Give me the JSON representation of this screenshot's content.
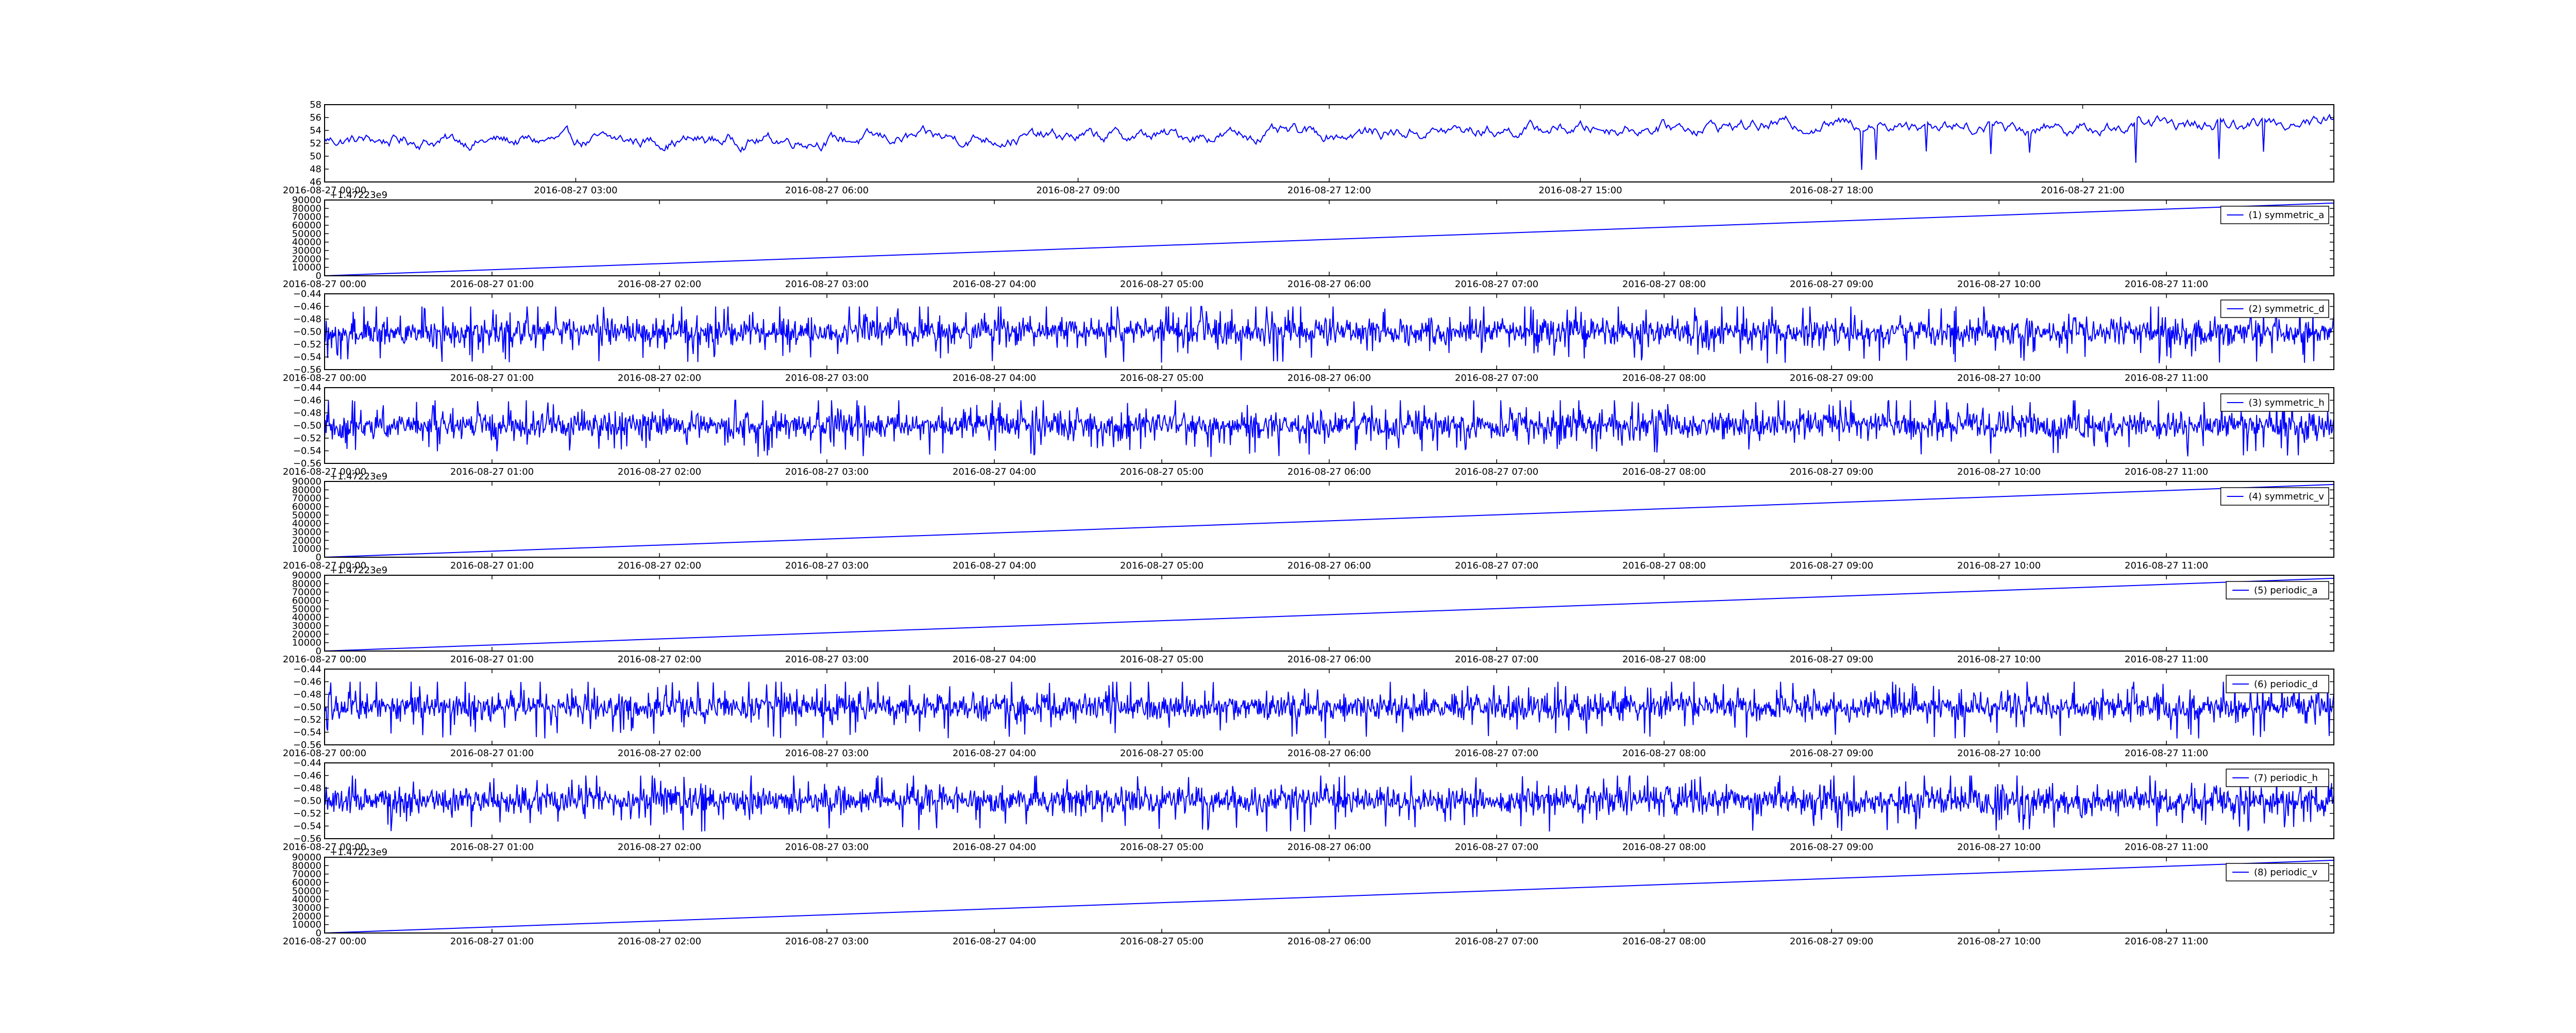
{
  "colors": {
    "line": "#0000ff",
    "axes": "#000000",
    "background": "#ffffff"
  },
  "chart_data": [
    {
      "type": "line",
      "title": "",
      "xlabel": "",
      "ylabel": "",
      "legend": null,
      "grid": false,
      "ylim": [
        46,
        58
      ],
      "y_ticks": [
        "46",
        "48",
        "50",
        "52",
        "54",
        "56",
        "58"
      ],
      "x_tick_labels": [
        "2016-08-27 00:00",
        "2016-08-27 03:00",
        "2016-08-27 06:00",
        "2016-08-27 09:00",
        "2016-08-27 12:00",
        "2016-08-27 15:00",
        "2016-08-27 18:00",
        "2016-08-27 21:00"
      ],
      "x_range": [
        "2016-08-27 00:00",
        "2016-08-28 00:00"
      ],
      "series": [
        {
          "kind": "noisy_trend",
          "x": [
            "2016-08-27 00:00",
            "2016-08-27 03:00",
            "2016-08-27 06:00",
            "2016-08-27 09:00",
            "2016-08-27 12:00",
            "2016-08-27 15:00",
            "2016-08-27 18:00",
            "2016-08-27 21:00",
            "2016-08-28 00:00"
          ],
          "values": [
            52.5,
            52.3,
            52.6,
            53.0,
            53.5,
            54.3,
            55.0,
            54.5,
            55.5
          ]
        }
      ]
    },
    {
      "type": "line",
      "offset_label": "+1.47223e9",
      "ylim": [
        0,
        90000
      ],
      "y_ticks": [
        "0",
        "10000",
        "20000",
        "30000",
        "40000",
        "50000",
        "60000",
        "70000",
        "80000",
        "90000"
      ],
      "x_tick_labels": [
        "2016-08-27 00:00",
        "2016-08-27 01:00",
        "2016-08-27 02:00",
        "2016-08-27 03:00",
        "2016-08-27 04:00",
        "2016-08-27 05:00",
        "2016-08-27 06:00",
        "2016-08-27 07:00",
        "2016-08-27 08:00",
        "2016-08-27 09:00",
        "2016-08-27 10:00",
        "2016-08-27 11:00"
      ],
      "x_range": [
        "2016-08-27 00:00",
        "2016-08-27 12:00"
      ],
      "legend": "top-right",
      "series": [
        {
          "name": "(1) symmetric_a",
          "kind": "linear",
          "x": [
            "2016-08-27 00:00",
            "2016-08-27 12:00"
          ],
          "values": [
            0,
            86400
          ]
        }
      ]
    },
    {
      "type": "line",
      "ylim": [
        -0.56,
        -0.44
      ],
      "y_ticks": [
        "−0.56",
        "−0.54",
        "−0.52",
        "−0.50",
        "−0.48",
        "−0.46",
        "−0.44"
      ],
      "x_tick_labels": [
        "2016-08-27 00:00",
        "2016-08-27 01:00",
        "2016-08-27 02:00",
        "2016-08-27 03:00",
        "2016-08-27 04:00",
        "2016-08-27 05:00",
        "2016-08-27 06:00",
        "2016-08-27 07:00",
        "2016-08-27 08:00",
        "2016-08-27 09:00",
        "2016-08-27 10:00",
        "2016-08-27 11:00"
      ],
      "x_range": [
        "2016-08-27 00:00",
        "2016-08-27 12:00"
      ],
      "legend": "top-right",
      "series": [
        {
          "name": "(2) symmetric_d",
          "kind": "noise",
          "mean": -0.5,
          "range": [
            -0.55,
            -0.46
          ]
        }
      ]
    },
    {
      "type": "line",
      "ylim": [
        -0.56,
        -0.44
      ],
      "y_ticks": [
        "−0.56",
        "−0.54",
        "−0.52",
        "−0.50",
        "−0.48",
        "−0.46",
        "−0.44"
      ],
      "x_tick_labels": [
        "2016-08-27 00:00",
        "2016-08-27 01:00",
        "2016-08-27 02:00",
        "2016-08-27 03:00",
        "2016-08-27 04:00",
        "2016-08-27 05:00",
        "2016-08-27 06:00",
        "2016-08-27 07:00",
        "2016-08-27 08:00",
        "2016-08-27 09:00",
        "2016-08-27 10:00",
        "2016-08-27 11:00"
      ],
      "x_range": [
        "2016-08-27 00:00",
        "2016-08-27 12:00"
      ],
      "legend": "top-right",
      "series": [
        {
          "name": "(3) symmetric_h",
          "kind": "noise",
          "mean": -0.5,
          "range": [
            -0.55,
            -0.46
          ]
        }
      ]
    },
    {
      "type": "line",
      "offset_label": "+1.47223e9",
      "ylim": [
        0,
        90000
      ],
      "y_ticks": [
        "0",
        "10000",
        "20000",
        "30000",
        "40000",
        "50000",
        "60000",
        "70000",
        "80000",
        "90000"
      ],
      "x_tick_labels": [
        "2016-08-27 00:00",
        "2016-08-27 01:00",
        "2016-08-27 02:00",
        "2016-08-27 03:00",
        "2016-08-27 04:00",
        "2016-08-27 05:00",
        "2016-08-27 06:00",
        "2016-08-27 07:00",
        "2016-08-27 08:00",
        "2016-08-27 09:00",
        "2016-08-27 10:00",
        "2016-08-27 11:00"
      ],
      "x_range": [
        "2016-08-27 00:00",
        "2016-08-27 12:00"
      ],
      "legend": "top-right",
      "series": [
        {
          "name": "(4) symmetric_v",
          "kind": "linear",
          "x": [
            "2016-08-27 00:00",
            "2016-08-27 12:00"
          ],
          "values": [
            0,
            86400
          ]
        }
      ]
    },
    {
      "type": "line",
      "offset_label": "+1.47223e9",
      "ylim": [
        0,
        90000
      ],
      "y_ticks": [
        "0",
        "10000",
        "20000",
        "30000",
        "40000",
        "50000",
        "60000",
        "70000",
        "80000",
        "90000"
      ],
      "x_tick_labels": [
        "2016-08-27 00:00",
        "2016-08-27 01:00",
        "2016-08-27 02:00",
        "2016-08-27 03:00",
        "2016-08-27 04:00",
        "2016-08-27 05:00",
        "2016-08-27 06:00",
        "2016-08-27 07:00",
        "2016-08-27 08:00",
        "2016-08-27 09:00",
        "2016-08-27 10:00",
        "2016-08-27 11:00"
      ],
      "x_range": [
        "2016-08-27 00:00",
        "2016-08-27 12:00"
      ],
      "legend": "top-right",
      "series": [
        {
          "name": "(5) periodic_a",
          "kind": "linear",
          "x": [
            "2016-08-27 00:00",
            "2016-08-27 12:00"
          ],
          "values": [
            0,
            86400
          ]
        }
      ]
    },
    {
      "type": "line",
      "ylim": [
        -0.56,
        -0.44
      ],
      "y_ticks": [
        "−0.56",
        "−0.54",
        "−0.52",
        "−0.50",
        "−0.48",
        "−0.46",
        "−0.44"
      ],
      "x_tick_labels": [
        "2016-08-27 00:00",
        "2016-08-27 01:00",
        "2016-08-27 02:00",
        "2016-08-27 03:00",
        "2016-08-27 04:00",
        "2016-08-27 05:00",
        "2016-08-27 06:00",
        "2016-08-27 07:00",
        "2016-08-27 08:00",
        "2016-08-27 09:00",
        "2016-08-27 10:00",
        "2016-08-27 11:00"
      ],
      "x_range": [
        "2016-08-27 00:00",
        "2016-08-27 12:00"
      ],
      "legend": "top-right",
      "series": [
        {
          "name": "(6) periodic_d",
          "kind": "noise",
          "mean": -0.5,
          "range": [
            -0.55,
            -0.46
          ]
        }
      ]
    },
    {
      "type": "line",
      "ylim": [
        -0.56,
        -0.44
      ],
      "y_ticks": [
        "−0.56",
        "−0.54",
        "−0.52",
        "−0.50",
        "−0.48",
        "−0.46",
        "−0.44"
      ],
      "x_tick_labels": [
        "2016-08-27 00:00",
        "2016-08-27 01:00",
        "2016-08-27 02:00",
        "2016-08-27 03:00",
        "2016-08-27 04:00",
        "2016-08-27 05:00",
        "2016-08-27 06:00",
        "2016-08-27 07:00",
        "2016-08-27 08:00",
        "2016-08-27 09:00",
        "2016-08-27 10:00",
        "2016-08-27 11:00"
      ],
      "x_range": [
        "2016-08-27 00:00",
        "2016-08-27 12:00"
      ],
      "legend": "top-right",
      "series": [
        {
          "name": "(7) periodic_h",
          "kind": "noise",
          "mean": -0.5,
          "range": [
            -0.55,
            -0.46
          ]
        }
      ]
    },
    {
      "type": "line",
      "offset_label": "+1.47223e9",
      "ylim": [
        0,
        90000
      ],
      "y_ticks": [
        "0",
        "10000",
        "20000",
        "30000",
        "40000",
        "50000",
        "60000",
        "70000",
        "80000",
        "90000"
      ],
      "x_tick_labels": [
        "2016-08-27 00:00",
        "2016-08-27 01:00",
        "2016-08-27 02:00",
        "2016-08-27 03:00",
        "2016-08-27 04:00",
        "2016-08-27 05:00",
        "2016-08-27 06:00",
        "2016-08-27 07:00",
        "2016-08-27 08:00",
        "2016-08-27 09:00",
        "2016-08-27 10:00",
        "2016-08-27 11:00"
      ],
      "x_range": [
        "2016-08-27 00:00",
        "2016-08-27 12:00"
      ],
      "legend": "top-right",
      "series": [
        {
          "name": "(8) periodic_v",
          "kind": "linear",
          "x": [
            "2016-08-27 00:00",
            "2016-08-27 12:00"
          ],
          "values": [
            0,
            86400
          ]
        }
      ]
    }
  ]
}
